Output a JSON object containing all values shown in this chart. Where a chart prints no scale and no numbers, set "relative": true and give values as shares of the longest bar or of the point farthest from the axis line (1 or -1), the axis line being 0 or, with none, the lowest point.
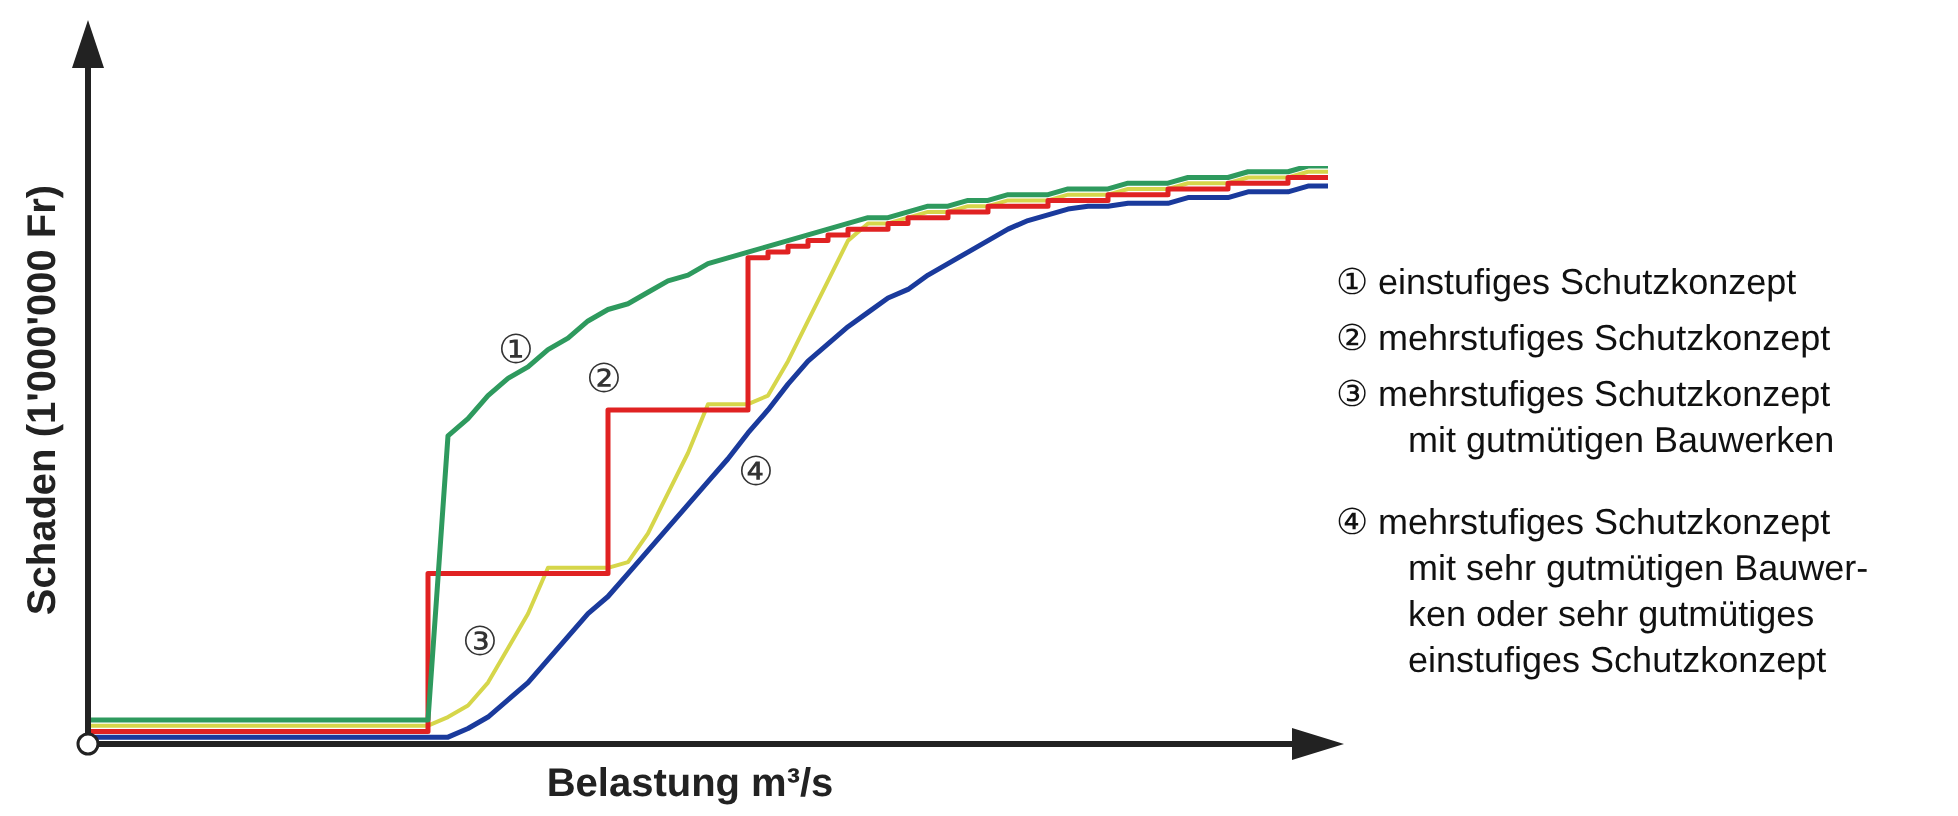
{
  "chart_data": {
    "type": "line",
    "relative": true,
    "xlabel": "Belastung m³/s",
    "ylabel": "Schaden (1'000'000 Fr)",
    "categories": [
      null,
      null,
      null,
      null,
      null,
      null,
      null,
      null,
      null,
      null,
      null,
      null,
      null,
      null,
      null,
      null,
      null,
      null,
      null,
      null,
      null,
      null,
      null,
      null,
      null,
      null,
      null,
      null,
      null,
      null,
      null,
      null,
      null,
      null,
      null,
      null,
      null,
      null,
      null,
      null,
      null,
      null,
      null,
      null,
      null,
      null,
      null,
      null,
      null,
      null,
      null,
      null,
      null,
      null,
      null,
      null,
      null,
      null,
      null,
      null,
      null,
      null,
      null
    ],
    "series": [
      {
        "name": "①",
        "color": "#2e9a5e",
        "values": [
          0.035,
          0.035,
          0.035,
          0.035,
          0.035,
          0.035,
          0.035,
          0.035,
          0.035,
          0.035,
          0.035,
          0.035,
          0.035,
          0.035,
          0.035,
          0.035,
          0.035,
          0.035,
          0.53,
          0.56,
          0.6,
          0.63,
          0.65,
          0.68,
          0.7,
          0.73,
          0.75,
          0.76,
          0.78,
          0.8,
          0.81,
          0.83,
          0.84,
          0.85,
          0.86,
          0.87,
          0.88,
          0.89,
          0.9,
          0.91,
          0.91,
          0.92,
          0.93,
          0.93,
          0.94,
          0.94,
          0.95,
          0.95,
          0.95,
          0.96,
          0.96,
          0.96,
          0.97,
          0.97,
          0.97,
          0.98,
          0.98,
          0.98,
          0.99,
          0.99,
          0.99,
          1,
          1
        ]
      },
      {
        "name": "②",
        "type": "step",
        "color": "#e02222",
        "values": [
          0.015,
          0.015,
          0.015,
          0.015,
          0.015,
          0.015,
          0.015,
          0.015,
          0.015,
          0.015,
          0.015,
          0.015,
          0.015,
          0.015,
          0.015,
          0.015,
          0.015,
          0.015,
          0.29,
          0.29,
          0.29,
          0.29,
          0.29,
          0.29,
          0.29,
          0.29,
          0.29,
          0.575,
          0.575,
          0.575,
          0.575,
          0.575,
          0.575,
          0.575,
          0.84,
          0.85,
          0.86,
          0.87,
          0.88,
          0.89,
          0.89,
          0.9,
          0.91,
          0.91,
          0.92,
          0.92,
          0.93,
          0.93,
          0.93,
          0.94,
          0.94,
          0.94,
          0.95,
          0.95,
          0.95,
          0.96,
          0.96,
          0.96,
          0.97,
          0.97,
          0.97,
          0.98,
          0.98
        ]
      },
      {
        "name": "③",
        "color": "#d6d64a",
        "values": [
          0.025,
          0.025,
          0.025,
          0.025,
          0.025,
          0.025,
          0.025,
          0.025,
          0.025,
          0.025,
          0.025,
          0.025,
          0.025,
          0.025,
          0.025,
          0.025,
          0.025,
          0.025,
          0.04,
          0.06,
          0.1,
          0.16,
          0.22,
          0.3,
          0.3,
          0.3,
          0.3,
          0.31,
          0.36,
          0.43,
          0.5,
          0.585,
          0.585,
          0.585,
          0.6,
          0.66,
          0.73,
          0.8,
          0.87,
          0.9,
          0.9,
          0.91,
          0.92,
          0.92,
          0.93,
          0.93,
          0.94,
          0.94,
          0.94,
          0.95,
          0.95,
          0.95,
          0.96,
          0.96,
          0.96,
          0.97,
          0.97,
          0.97,
          0.98,
          0.98,
          0.98,
          0.99,
          0.99
        ]
      },
      {
        "name": "④",
        "color": "#1a3a9c",
        "values": [
          0.005,
          0.005,
          0.005,
          0.005,
          0.005,
          0.005,
          0.005,
          0.005,
          0.005,
          0.005,
          0.005,
          0.005,
          0.005,
          0.005,
          0.005,
          0.005,
          0.005,
          0.005,
          0.005,
          0.02,
          0.04,
          0.07,
          0.1,
          0.14,
          0.18,
          0.22,
          0.25,
          0.29,
          0.33,
          0.37,
          0.41,
          0.45,
          0.49,
          0.535,
          0.575,
          0.62,
          0.66,
          0.69,
          0.72,
          0.745,
          0.77,
          0.785,
          0.81,
          0.83,
          0.85,
          0.87,
          0.89,
          0.905,
          0.915,
          0.925,
          0.93,
          0.93,
          0.935,
          0.935,
          0.935,
          0.945,
          0.945,
          0.945,
          0.955,
          0.955,
          0.955,
          0.965,
          0.965
        ]
      }
    ],
    "annotations": [
      "① einstufiges Schutzkonzept",
      "② mehrstufiges Schutzkonzept",
      "③ mehrstufiges Schutzkonzept\nmit gutmütigen Bauwerken",
      "④ mehrstufiges Schutzkonzept\nmit sehr gutmütigen Bauwer-\nken oder sehr gutmütiges\neinstufiges Schutzkonzept"
    ]
  }
}
